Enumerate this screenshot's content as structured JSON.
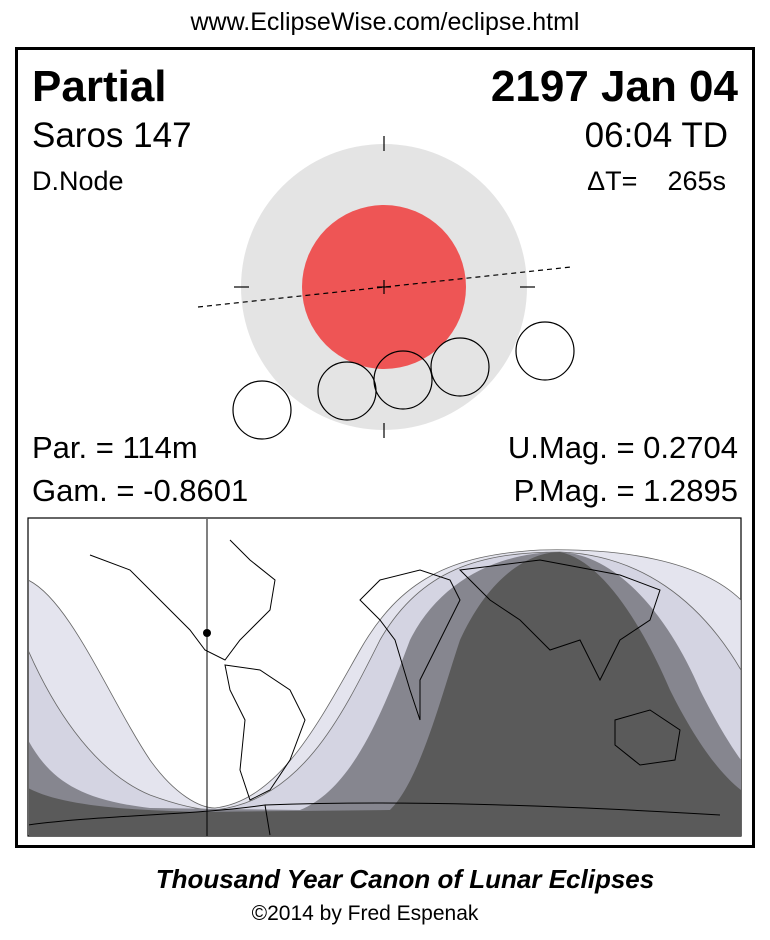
{
  "url": "www.EclipseWise.com/eclipse.html",
  "eclipse": {
    "type": "Partial",
    "date": "2197 Jan 04",
    "saros": "Saros 147",
    "time": "06:04 TD",
    "node": "D.Node",
    "delta_t": "ΔT=    265s",
    "partial_duration": "Par. = 114m",
    "gamma": "Gam. = -0.8601",
    "umbral_magnitude": "U.Mag. = 0.2704",
    "penumbral_magnitude": "P.Mag. = 1.2895"
  },
  "colors": {
    "umbra": "#ee5555",
    "penumbra": "#e4e4e4",
    "map_light": "#e4e4ee",
    "map_mid": "#d4d4e2",
    "map_dark": "#86868f",
    "map_darkest": "#5a5a5a"
  },
  "footer": {
    "title": "Thousand Year Canon of Lunar Eclipses",
    "copyright": "©2014 by Fred Espenak"
  }
}
